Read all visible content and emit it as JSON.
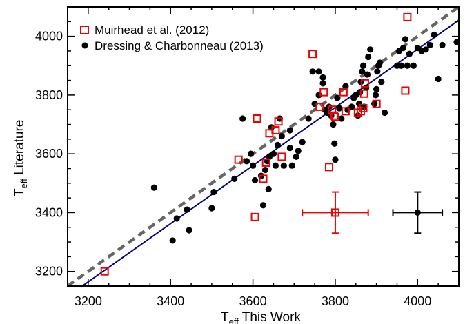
{
  "chart_data": {
    "type": "scatter",
    "xlabel": {
      "main": "T",
      "sub": "eff",
      "rest": " This Work"
    },
    "ylabel": {
      "main": "T",
      "sub": "eff",
      "rest": " Literature"
    },
    "xlim": [
      3150,
      4100
    ],
    "ylim": [
      3150,
      4100
    ],
    "xticks": [
      3200,
      3400,
      3600,
      3800,
      4000
    ],
    "yticks": [
      3200,
      3400,
      3600,
      3800,
      4000
    ],
    "legend_position": "top-left",
    "lines": [
      {
        "kind": "one-to-one",
        "style": "dashed",
        "color": "#666666",
        "x": [
          3150,
          4100
        ],
        "y": [
          3150,
          4100
        ]
      },
      {
        "kind": "fit",
        "style": "solid",
        "color": "#000080",
        "x": [
          3150,
          4100
        ],
        "y": [
          3115,
          4055
        ]
      }
    ],
    "series": [
      {
        "name": "Muirhead et al. (2012)",
        "marker": "open-square",
        "color": "#ee0000",
        "points": [
          [
            3240,
            3200
          ],
          [
            3565,
            3580
          ],
          [
            3605,
            3385
          ],
          [
            3610,
            3720
          ],
          [
            3625,
            3515
          ],
          [
            3632,
            3570
          ],
          [
            3640,
            3670
          ],
          [
            3655,
            3680
          ],
          [
            3662,
            3710
          ],
          [
            3670,
            3590
          ],
          [
            3745,
            3940
          ],
          [
            3762,
            3760
          ],
          [
            3772,
            3810
          ],
          [
            3785,
            3555
          ],
          [
            3792,
            3750
          ],
          [
            3797,
            3730
          ],
          [
            3800,
            3725
          ],
          [
            3820,
            3810
          ],
          [
            3825,
            3745
          ],
          [
            3855,
            3740
          ],
          [
            3862,
            3745
          ],
          [
            3868,
            3755
          ],
          [
            3870,
            3805
          ],
          [
            3872,
            3840
          ],
          [
            3900,
            3770
          ],
          [
            3970,
            3815
          ],
          [
            3975,
            4065
          ]
        ],
        "error_bar": {
          "x": 3800,
          "y": 3400,
          "xerr": 80,
          "yerr": 70
        }
      },
      {
        "name": "Dressing & Charbonneau (2013)",
        "marker": "filled-circle",
        "color": "#000000",
        "points": [
          [
            3360,
            3485
          ],
          [
            3405,
            3305
          ],
          [
            3415,
            3380
          ],
          [
            3440,
            3410
          ],
          [
            3445,
            3340
          ],
          [
            3500,
            3415
          ],
          [
            3505,
            3470
          ],
          [
            3555,
            3515
          ],
          [
            3575,
            3720
          ],
          [
            3585,
            3575
          ],
          [
            3595,
            3600
          ],
          [
            3600,
            3560
          ],
          [
            3605,
            3510
          ],
          [
            3620,
            3525
          ],
          [
            3625,
            3425
          ],
          [
            3630,
            3545
          ],
          [
            3635,
            3575
          ],
          [
            3638,
            3480
          ],
          [
            3640,
            3590
          ],
          [
            3645,
            3690
          ],
          [
            3650,
            3600
          ],
          [
            3655,
            3560
          ],
          [
            3660,
            3630
          ],
          [
            3665,
            3720
          ],
          [
            3670,
            3660
          ],
          [
            3675,
            3560
          ],
          [
            3690,
            3620
          ],
          [
            3695,
            3560
          ],
          [
            3705,
            3590
          ],
          [
            3710,
            3610
          ],
          [
            3720,
            3640
          ],
          [
            3750,
            3770
          ],
          [
            3760,
            3800
          ],
          [
            3770,
            3840
          ],
          [
            3775,
            3750
          ],
          [
            3780,
            3740
          ],
          [
            3785,
            3760
          ],
          [
            3790,
            3730
          ],
          [
            3795,
            3700
          ],
          [
            3798,
            3635
          ],
          [
            3800,
            3580
          ],
          [
            3805,
            3790
          ],
          [
            3810,
            3755
          ],
          [
            3815,
            3720
          ],
          [
            3825,
            3830
          ],
          [
            3830,
            3750
          ],
          [
            3840,
            3760
          ],
          [
            3845,
            3790
          ],
          [
            3850,
            3800
          ],
          [
            3855,
            3730
          ],
          [
            3858,
            3770
          ],
          [
            3860,
            3810
          ],
          [
            3862,
            3845
          ],
          [
            3865,
            3880
          ],
          [
            3868,
            3900
          ],
          [
            3870,
            3760
          ],
          [
            3875,
            3825
          ],
          [
            3878,
            3870
          ],
          [
            3880,
            3930
          ],
          [
            3885,
            3955
          ],
          [
            3895,
            3770
          ],
          [
            3898,
            3800
          ],
          [
            3900,
            3820
          ],
          [
            3902,
            3880
          ],
          [
            3905,
            3900
          ],
          [
            3908,
            3910
          ],
          [
            3912,
            3845
          ],
          [
            3920,
            3740
          ],
          [
            3950,
            3900
          ],
          [
            3955,
            3950
          ],
          [
            3960,
            3900
          ],
          [
            3965,
            3960
          ],
          [
            3970,
            3990
          ],
          [
            3975,
            3900
          ],
          [
            3980,
            3940
          ],
          [
            3990,
            3900
          ],
          [
            4000,
            3960
          ],
          [
            4010,
            3950
          ],
          [
            4020,
            3955
          ],
          [
            4030,
            3970
          ],
          [
            4040,
            4005
          ],
          [
            4050,
            3855
          ],
          [
            4060,
            3970
          ],
          [
            4095,
            3980
          ],
          [
            3745,
            3880
          ],
          [
            3760,
            3880
          ],
          [
            3770,
            3860
          ],
          [
            3735,
            3720
          ],
          [
            3690,
            3680
          ]
        ],
        "error_bar": {
          "x": 4000,
          "y": 3400,
          "xerr": 60,
          "yerr": 70
        }
      }
    ]
  }
}
